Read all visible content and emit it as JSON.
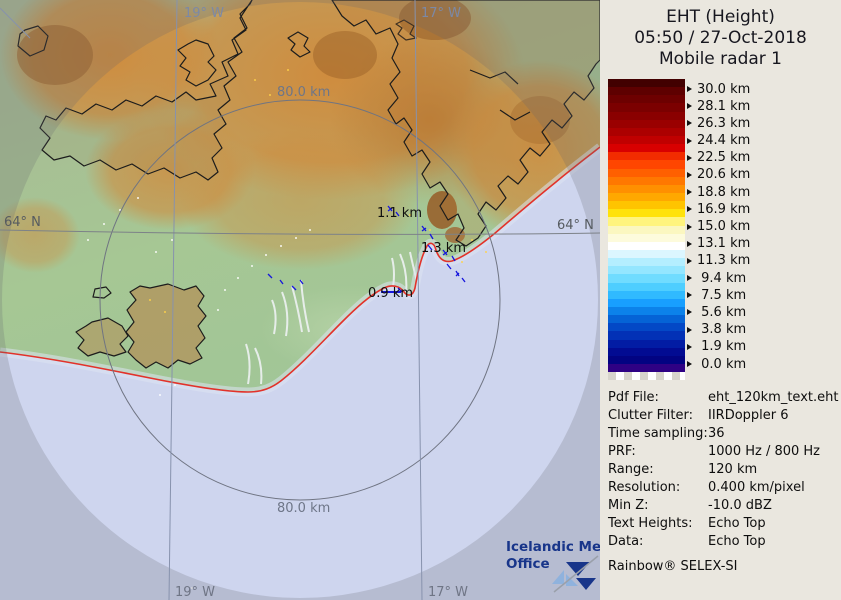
{
  "title": {
    "line1": "EHT (Height)",
    "line2": "05:50 / 27-Oct-2018",
    "line3": "Mobile radar 1"
  },
  "scale": {
    "unit": "km",
    "labels": [
      "30.0 km",
      "28.1 km",
      "26.3 km",
      "24.4 km",
      "22.5 km",
      "20.6 km",
      "18.8 km",
      "16.9 km",
      "15.0 km",
      "13.1 km",
      "11.3 km",
      " 9.4 km",
      " 7.5 km",
      " 5.6 km",
      " 3.8 km",
      " 1.9 km",
      " 0.0 km"
    ],
    "colors": [
      "#420000",
      "#5e0000",
      "#6d0000",
      "#7b0000",
      "#8a0000",
      "#9a0000",
      "#ac0000",
      "#c00000",
      "#d80000",
      "#f22c00",
      "#ff4600",
      "#ff6000",
      "#ff7800",
      "#ff9000",
      "#ffa800",
      "#ffc400",
      "#ffe20a",
      "#fff47e",
      "#fbf7c0",
      "#fdfbdc",
      "#ffffff",
      "#dcf6ff",
      "#b4eeff",
      "#94e6ff",
      "#70dcff",
      "#4eceff",
      "#30baff",
      "#189fff",
      "#0c82ea",
      "#0563d6",
      "#0348c6",
      "#0231b6",
      "#021ca4",
      "#020b92",
      "#020382",
      "#2e0184"
    ]
  },
  "info_panel": {
    "rows": [
      {
        "label": "Pdf File:",
        "value": "eht_120km_text.eht"
      },
      {
        "label": "Clutter Filter:",
        "value": "IIRDoppler 6"
      },
      {
        "label": "Time sampling:",
        "value": "36"
      },
      {
        "label": "PRF:",
        "value": "1000 Hz / 800 Hz"
      },
      {
        "label": "Range:",
        "value": "120 km"
      },
      {
        "label": "Resolution:",
        "value": "0.400 km/pixel"
      },
      {
        "label": "Min Z:",
        "value": "-10.0 dBZ"
      },
      {
        "label": "Text Heights:",
        "value": "Echo Top"
      },
      {
        "label": "Data:",
        "value": "Echo Top"
      }
    ],
    "footer": "Rainbow® SELEX-SI"
  },
  "map": {
    "labels": {
      "lat": "64° N",
      "lon_west": "19° W",
      "lon_east": "17° W",
      "ring": "80.0 km"
    },
    "echo_labels": [
      "1.1 km",
      "1.3 km",
      "0.9 km"
    ],
    "logo": {
      "line1": "Icelandic Met",
      "line2": "Office"
    },
    "colors": {
      "sea": "#ced5ee",
      "land_green": "#a6c794",
      "highland_orange": "#d29048",
      "coastline_red": "#e2322a",
      "grid_gray": "#8792ad",
      "echo_marker_blue": "#1616dd",
      "logo_blue": "#18358a"
    }
  }
}
